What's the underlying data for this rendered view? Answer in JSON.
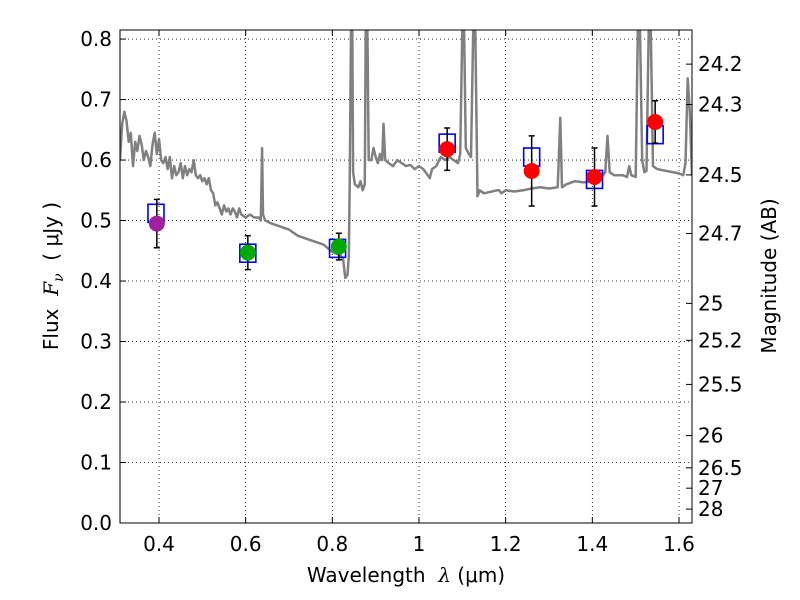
{
  "chart_data": {
    "type": "scatter",
    "xlabel_prefix": "Wavelength  ",
    "xlabel_symbol": "λ",
    "xlabel_unit": " (μm)",
    "ylabel_prefix": "Flux  ",
    "ylabel_symbol": "F",
    "ylabel_sub": "ν",
    "ylabel_unit": "  ( μJy )",
    "y2label": "Magnitude (AB)",
    "xlim": [
      0.31,
      1.63
    ],
    "ylim": [
      0.0,
      0.815
    ],
    "grid": true,
    "x_ticks": [
      0.4,
      0.6,
      0.8,
      1.0,
      1.2,
      1.4,
      1.6
    ],
    "x_tick_labels": [
      "0.4",
      "0.6",
      "0.8",
      "1",
      "1.2",
      "1.4",
      "1.6"
    ],
    "y_ticks": [
      0.0,
      0.1,
      0.2,
      0.3,
      0.4,
      0.5,
      0.6,
      0.7,
      0.8
    ],
    "y_tick_labels": [
      "0.0",
      "0.1",
      "0.2",
      "0.3",
      "0.4",
      "0.5",
      "0.6",
      "0.7",
      "0.8"
    ],
    "mag_ticks": [
      24.2,
      24.3,
      24.5,
      24.7,
      25,
      25.2,
      25.5,
      26,
      26.5,
      27,
      28
    ],
    "mag_tick_labels": [
      "24.2",
      "24.3",
      "24.5",
      "24.7",
      "25",
      "25.2",
      "25.5",
      "26",
      "26.5",
      "27",
      "28"
    ],
    "colors": {
      "template": "#808080",
      "model_box": "#0000ff",
      "errorbar": "#000000",
      "purple": "#a020a0",
      "green": "#00aa00",
      "red": "#ff0000"
    },
    "observed": [
      {
        "x": 0.395,
        "y": 0.495,
        "err": 0.04,
        "color": "purple"
      },
      {
        "x": 0.605,
        "y": 0.447,
        "err": 0.028,
        "color": "green"
      },
      {
        "x": 0.815,
        "y": 0.457,
        "err": 0.022,
        "color": "green"
      },
      {
        "x": 1.065,
        "y": 0.618,
        "err": 0.035,
        "color": "red"
      },
      {
        "x": 1.26,
        "y": 0.582,
        "err": 0.058,
        "color": "red"
      },
      {
        "x": 1.405,
        "y": 0.572,
        "err": 0.048,
        "color": "red"
      },
      {
        "x": 1.545,
        "y": 0.663,
        "err": 0.035,
        "color": "red"
      }
    ],
    "model": [
      {
        "x": 0.393,
        "y": 0.512
      },
      {
        "x": 0.605,
        "y": 0.446
      },
      {
        "x": 0.812,
        "y": 0.454
      },
      {
        "x": 1.065,
        "y": 0.628
      },
      {
        "x": 1.26,
        "y": 0.605
      },
      {
        "x": 1.405,
        "y": 0.568
      },
      {
        "x": 1.545,
        "y": 0.642
      }
    ],
    "template_spectrum": [
      [
        0.31,
        0.6
      ],
      [
        0.315,
        0.66
      ],
      [
        0.32,
        0.68
      ],
      [
        0.325,
        0.665
      ],
      [
        0.33,
        0.63
      ],
      [
        0.335,
        0.645
      ],
      [
        0.34,
        0.59
      ],
      [
        0.345,
        0.63
      ],
      [
        0.35,
        0.615
      ],
      [
        0.355,
        0.64
      ],
      [
        0.36,
        0.625
      ],
      [
        0.365,
        0.6
      ],
      [
        0.37,
        0.615
      ],
      [
        0.375,
        0.605
      ],
      [
        0.38,
        0.59
      ],
      [
        0.385,
        0.625
      ],
      [
        0.39,
        0.645
      ],
      [
        0.395,
        0.61
      ],
      [
        0.4,
        0.635
      ],
      [
        0.405,
        0.6
      ],
      [
        0.41,
        0.595
      ],
      [
        0.415,
        0.605
      ],
      [
        0.42,
        0.585
      ],
      [
        0.425,
        0.605
      ],
      [
        0.43,
        0.57
      ],
      [
        0.435,
        0.59
      ],
      [
        0.44,
        0.575
      ],
      [
        0.445,
        0.58
      ],
      [
        0.45,
        0.595
      ],
      [
        0.455,
        0.57
      ],
      [
        0.46,
        0.59
      ],
      [
        0.465,
        0.575
      ],
      [
        0.47,
        0.585
      ],
      [
        0.475,
        0.58
      ],
      [
        0.48,
        0.6
      ],
      [
        0.485,
        0.575
      ],
      [
        0.49,
        0.57
      ],
      [
        0.495,
        0.575
      ],
      [
        0.5,
        0.565
      ],
      [
        0.505,
        0.57
      ],
      [
        0.51,
        0.56
      ],
      [
        0.515,
        0.57
      ],
      [
        0.52,
        0.55
      ],
      [
        0.525,
        0.545
      ],
      [
        0.53,
        0.525
      ],
      [
        0.535,
        0.53
      ],
      [
        0.54,
        0.52
      ],
      [
        0.545,
        0.51
      ],
      [
        0.55,
        0.525
      ],
      [
        0.555,
        0.515
      ],
      [
        0.56,
        0.52
      ],
      [
        0.565,
        0.51
      ],
      [
        0.57,
        0.52
      ],
      [
        0.575,
        0.515
      ],
      [
        0.58,
        0.505
      ],
      [
        0.585,
        0.52
      ],
      [
        0.59,
        0.51
      ],
      [
        0.6,
        0.505
      ],
      [
        0.61,
        0.51
      ],
      [
        0.62,
        0.505
      ],
      [
        0.63,
        0.505
      ],
      [
        0.635,
        0.5
      ],
      [
        0.638,
        0.62
      ],
      [
        0.64,
        0.51
      ],
      [
        0.645,
        0.5
      ],
      [
        0.66,
        0.495
      ],
      [
        0.68,
        0.49
      ],
      [
        0.7,
        0.485
      ],
      [
        0.72,
        0.475
      ],
      [
        0.74,
        0.47
      ],
      [
        0.76,
        0.465
      ],
      [
        0.78,
        0.46
      ],
      [
        0.8,
        0.448
      ],
      [
        0.81,
        0.445
      ],
      [
        0.82,
        0.442
      ],
      [
        0.825,
        0.435
      ],
      [
        0.83,
        0.405
      ],
      [
        0.835,
        0.41
      ],
      [
        0.838,
        0.44
      ],
      [
        0.84,
        0.56
      ],
      [
        0.843,
        0.815
      ],
      [
        0.846,
        0.815
      ],
      [
        0.848,
        0.58
      ],
      [
        0.852,
        0.56
      ],
      [
        0.86,
        0.555
      ],
      [
        0.865,
        0.565
      ],
      [
        0.87,
        0.55
      ],
      [
        0.875,
        0.56
      ],
      [
        0.877,
        0.815
      ],
      [
        0.881,
        0.815
      ],
      [
        0.884,
        0.6
      ],
      [
        0.89,
        0.6
      ],
      [
        0.895,
        0.62
      ],
      [
        0.9,
        0.605
      ],
      [
        0.905,
        0.595
      ],
      [
        0.91,
        0.61
      ],
      [
        0.915,
        0.6
      ],
      [
        0.918,
        0.66
      ],
      [
        0.922,
        0.6
      ],
      [
        0.93,
        0.595
      ],
      [
        0.94,
        0.59
      ],
      [
        0.95,
        0.6
      ],
      [
        0.96,
        0.595
      ],
      [
        0.97,
        0.59
      ],
      [
        0.98,
        0.592
      ],
      [
        0.99,
        0.585
      ],
      [
        1.0,
        0.59
      ],
      [
        1.01,
        0.585
      ],
      [
        1.02,
        0.575
      ],
      [
        1.025,
        0.57
      ],
      [
        1.03,
        0.585
      ],
      [
        1.04,
        0.59
      ],
      [
        1.05,
        0.605
      ],
      [
        1.06,
        0.6
      ],
      [
        1.07,
        0.605
      ],
      [
        1.08,
        0.6
      ],
      [
        1.09,
        0.595
      ],
      [
        1.095,
        0.61
      ],
      [
        1.1,
        0.815
      ],
      [
        1.104,
        0.815
      ],
      [
        1.108,
        0.62
      ],
      [
        1.115,
        0.61
      ],
      [
        1.12,
        0.605
      ],
      [
        1.125,
        0.815
      ],
      [
        1.13,
        0.815
      ],
      [
        1.135,
        0.54
      ],
      [
        1.14,
        0.55
      ],
      [
        1.15,
        0.545
      ],
      [
        1.18,
        0.55
      ],
      [
        1.185,
        0.55
      ],
      [
        1.19,
        0.545
      ],
      [
        1.2,
        0.55
      ],
      [
        1.22,
        0.548
      ],
      [
        1.24,
        0.55
      ],
      [
        1.26,
        0.553
      ],
      [
        1.28,
        0.555
      ],
      [
        1.3,
        0.553
      ],
      [
        1.32,
        0.555
      ],
      [
        1.326,
        0.67
      ],
      [
        1.33,
        0.555
      ],
      [
        1.34,
        0.56
      ],
      [
        1.36,
        0.565
      ],
      [
        1.38,
        0.563
      ],
      [
        1.4,
        0.565
      ],
      [
        1.42,
        0.57
      ],
      [
        1.43,
        0.58
      ],
      [
        1.435,
        0.64
      ],
      [
        1.44,
        0.58
      ],
      [
        1.45,
        0.575
      ],
      [
        1.47,
        0.575
      ],
      [
        1.48,
        0.572
      ],
      [
        1.485,
        0.59
      ],
      [
        1.49,
        0.575
      ],
      [
        1.5,
        0.572
      ],
      [
        1.505,
        0.815
      ],
      [
        1.51,
        0.815
      ],
      [
        1.515,
        0.6
      ],
      [
        1.52,
        0.58
      ],
      [
        1.525,
        0.582
      ],
      [
        1.53,
        0.815
      ],
      [
        1.535,
        0.815
      ],
      [
        1.54,
        0.59
      ],
      [
        1.55,
        0.585
      ],
      [
        1.57,
        0.582
      ],
      [
        1.6,
        0.578
      ],
      [
        1.61,
        0.575
      ],
      [
        1.615,
        0.595
      ],
      [
        1.62,
        0.735
      ],
      [
        1.625,
        0.68
      ],
      [
        1.63,
        0.575
      ]
    ]
  }
}
